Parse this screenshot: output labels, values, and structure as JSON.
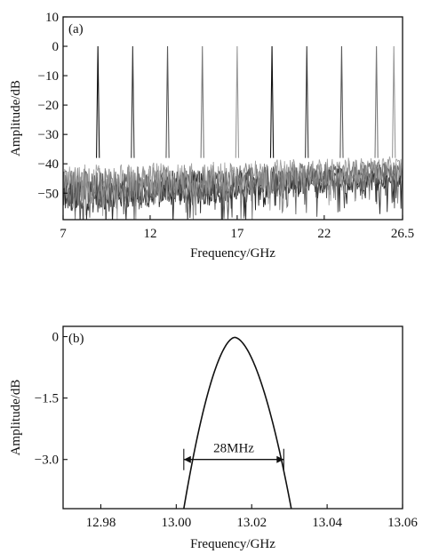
{
  "chart_data": [
    {
      "panel_label": "(a)",
      "type": "line",
      "xlabel": "Frequency/GHz",
      "ylabel": "Amplitude/dB",
      "xlim": [
        7,
        26.5
      ],
      "ylim": [
        -59,
        10
      ],
      "xticks": [
        7,
        12,
        17,
        22,
        26.5
      ],
      "xtick_labels": [
        "7",
        "12",
        "17",
        "22",
        "26.5"
      ],
      "yticks": [
        10,
        0,
        -10,
        -20,
        -30,
        -40,
        -50
      ],
      "ytick_labels": [
        "10",
        "0",
        "−10",
        "−20",
        "−30",
        "−40",
        "−50"
      ],
      "noise_floor_db": [
        -55,
        -40
      ],
      "peaks": [
        {
          "x": 9.0,
          "y": 0
        },
        {
          "x": 11.0,
          "y": 0
        },
        {
          "x": 13.0,
          "y": 0
        },
        {
          "x": 15.0,
          "y": 0
        },
        {
          "x": 17.0,
          "y": 0
        },
        {
          "x": 19.0,
          "y": 0
        },
        {
          "x": 21.0,
          "y": 0
        },
        {
          "x": 23.0,
          "y": 0
        },
        {
          "x": 25.0,
          "y": 0
        },
        {
          "x": 26.0,
          "y": 0
        }
      ],
      "series_colors": [
        "#111111",
        "#3a3a3a",
        "#5a5a5a",
        "#7a7a7a",
        "#999999"
      ]
    },
    {
      "panel_label": "(b)",
      "type": "line",
      "xlabel": "Frequency/GHz",
      "ylabel": "Amplitude/dB",
      "xlim": [
        12.97,
        13.06
      ],
      "ylim": [
        -4.2,
        0.25
      ],
      "xticks": [
        12.98,
        13.0,
        13.02,
        13.04,
        13.06
      ],
      "xtick_labels": [
        "12.98",
        "13.00",
        "13.02",
        "13.04",
        "13.06"
      ],
      "yticks": [
        0,
        -1.5,
        -3.0
      ],
      "ytick_labels": [
        "0",
        "−1.5",
        "−3.0"
      ],
      "curve": {
        "center": 13.0155,
        "peak_db": -0.02,
        "left_edge": 13.002,
        "right_edge": 13.0305,
        "bottom_db": -4.2
      },
      "bandwidth_marker": {
        "label": "28MHz",
        "x_start": 13.002,
        "x_end": 13.0285,
        "y": -3.0
      }
    }
  ]
}
